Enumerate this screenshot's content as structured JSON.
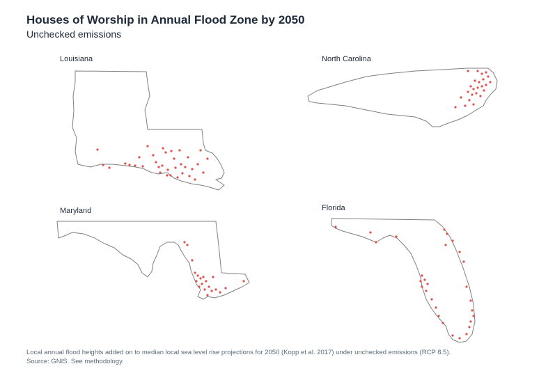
{
  "header": {
    "title": "Houses of Worship in Annual Flood Zone by 2050",
    "subtitle": "Unchecked emissions"
  },
  "maps": {
    "louisiana": {
      "label": "Louisiana"
    },
    "north_carolina": {
      "label": "North Carolina"
    },
    "maryland": {
      "label": "Maryland"
    },
    "florida": {
      "label": "Florida"
    }
  },
  "colors": {
    "point": "#e0504a",
    "outline": "#7f7f7f"
  },
  "footnote": {
    "line1": "Local annual flood heights added on to median local sea level rise projections for 2050 (Kopp et al. 2017) under unchecked emissions (RCP 8.5).",
    "line2": "Source: GNIS. See methodology."
  }
}
